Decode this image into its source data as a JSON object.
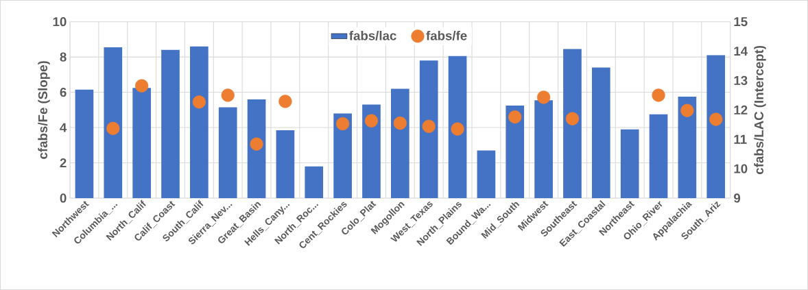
{
  "chart_data": {
    "type": "bar",
    "ylabel": "cfabs/Fe (Slope)",
    "y2label": "cfabs/LAC (Intercept)",
    "categories": [
      "Northwest",
      "Columbia_...",
      "North_Calif",
      "Calif_Coast",
      "South_Calif",
      "Sierra_Nev...",
      "Great_Basin",
      "Hells_Cany...",
      "North_Roc...",
      "Cent_Rockies",
      "Colo_Plat",
      "Mogollon",
      "West_Texas",
      "North_Plains",
      "Bound_Wa...",
      "Mid_South",
      "Midwest",
      "Southeast",
      "East_Coastal",
      "Northeast",
      "Ohio_River",
      "Appalachia",
      "South_Ariz"
    ],
    "series": [
      {
        "name": "fabs/lac",
        "color": "#4472c4",
        "values": [
          6.15,
          8.55,
          6.25,
          8.4,
          8.6,
          5.15,
          5.6,
          3.85,
          1.8,
          4.8,
          5.3,
          6.2,
          7.8,
          8.05,
          2.7,
          5.25,
          5.55,
          8.45,
          7.4,
          3.9,
          4.75,
          5.75,
          8.1
        ]
      },
      {
        "name": "fabs/fe",
        "type": "scatter",
        "axis": "y2",
        "color": "#ed7d31",
        "values": [
          null,
          11.37,
          12.82,
          null,
          12.27,
          12.5,
          10.84,
          12.29,
          null,
          11.53,
          11.63,
          11.55,
          11.44,
          11.35,
          null,
          11.76,
          12.43,
          11.7,
          null,
          null,
          12.5,
          11.98,
          11.68
        ]
      }
    ],
    "ylim": [
      0,
      10
    ],
    "yticks": [
      0,
      2,
      4,
      6,
      8,
      10
    ],
    "y2lim": [
      9,
      15
    ],
    "y2ticks": [
      9,
      10,
      11,
      12,
      13,
      14,
      15
    ],
    "grid": true,
    "legend": "top"
  }
}
